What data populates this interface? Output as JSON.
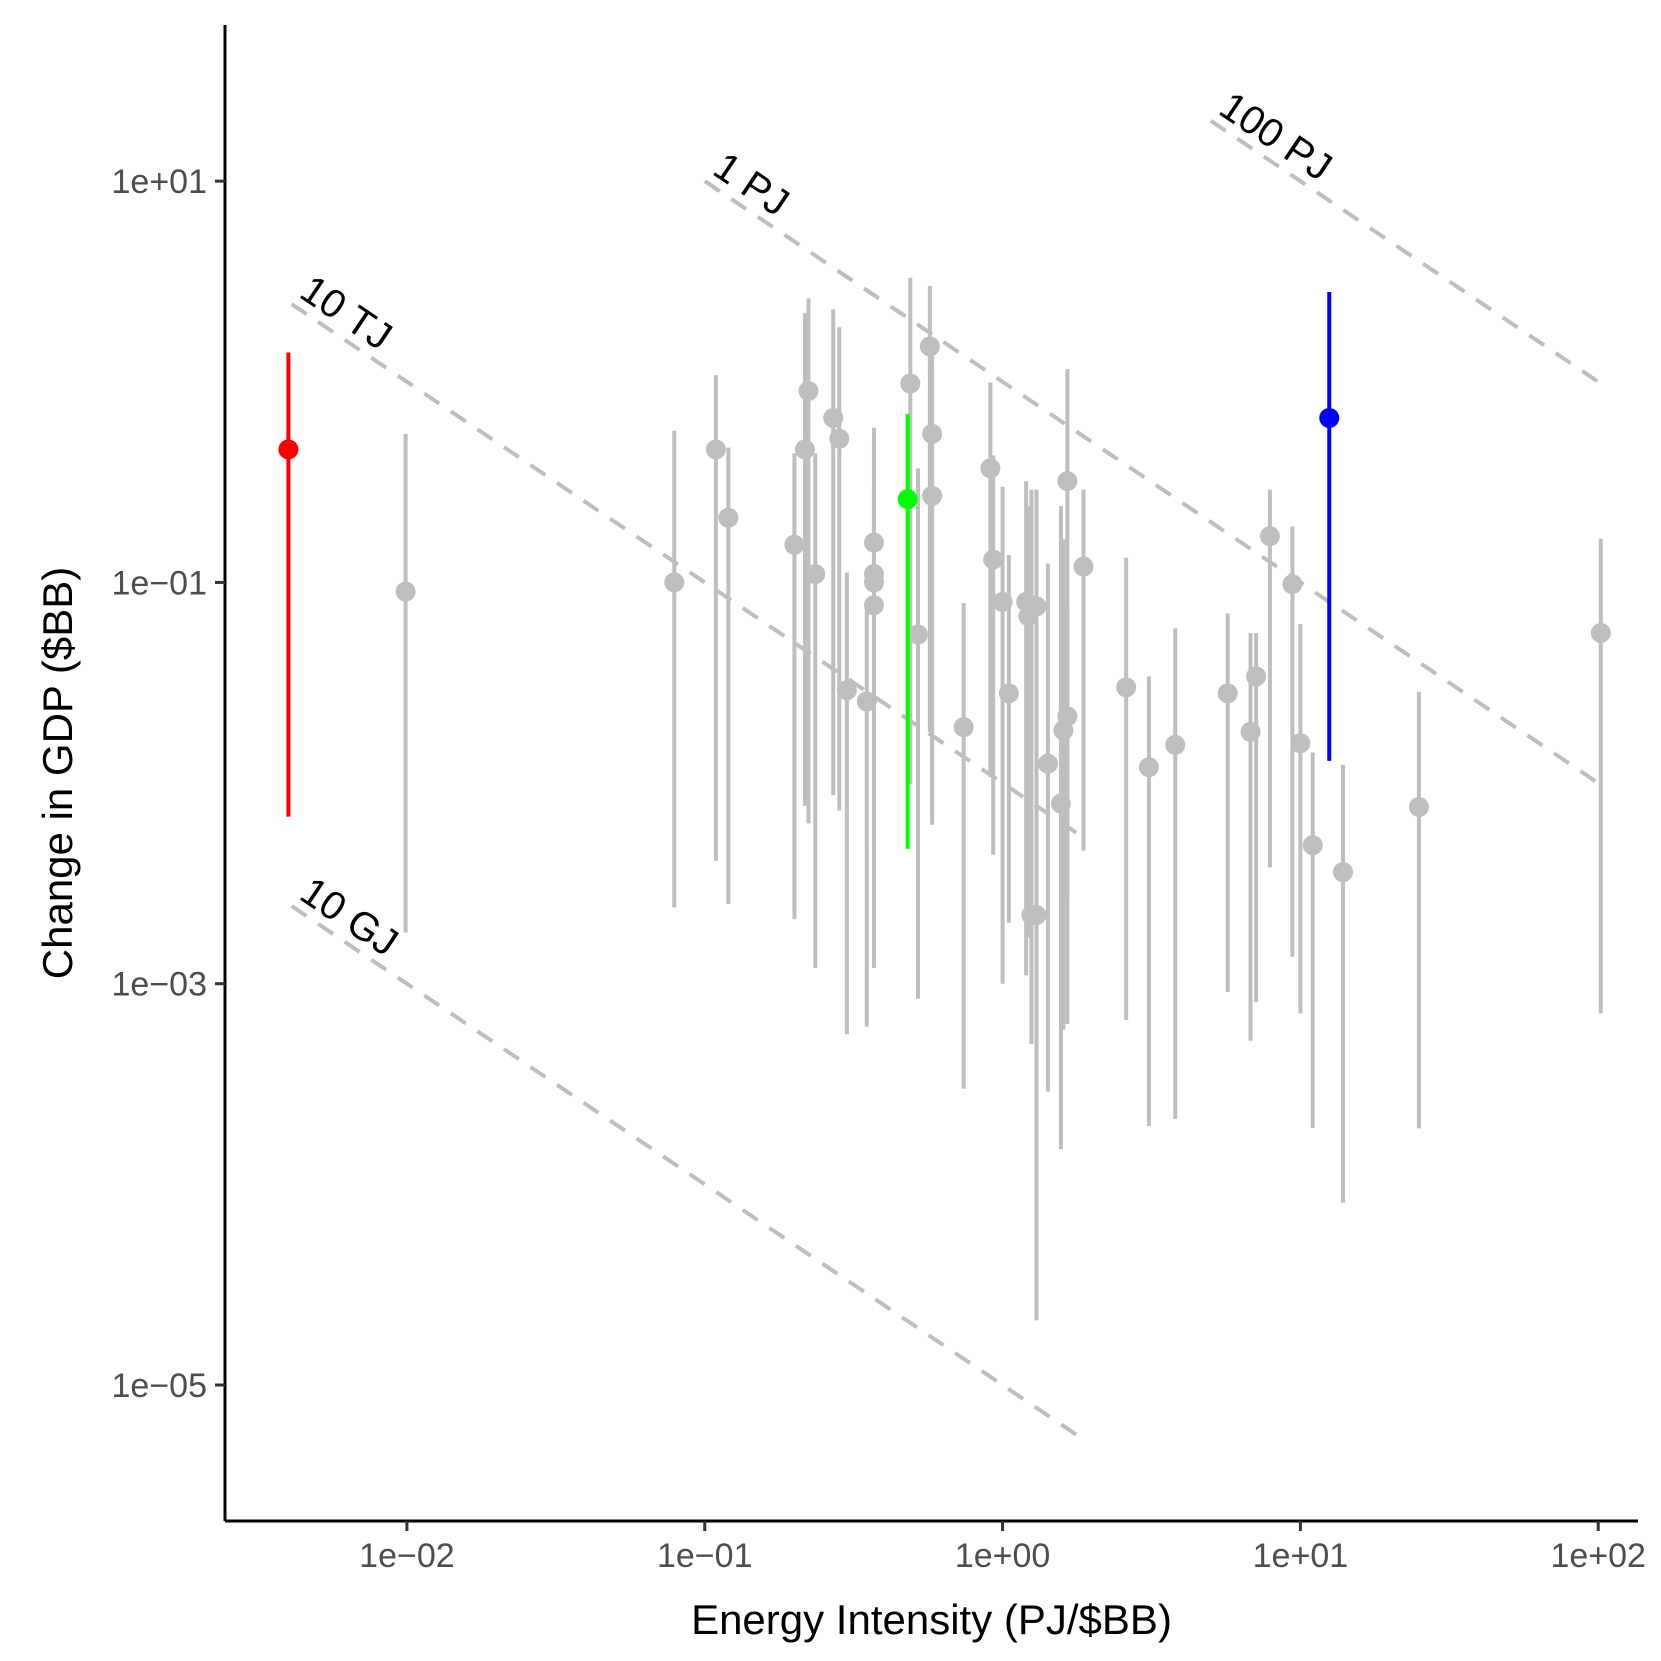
{
  "chart_data": {
    "type": "scatter",
    "title": "",
    "xlabel": "Energy Intensity (PJ/$BB)",
    "ylabel": "Change in GDP ($BB)",
    "x_scale": "log10",
    "y_scale": "log10",
    "xlim": [
      0.00245,
      136
    ],
    "ylim": [
      2.1e-06,
      60
    ],
    "x_ticks": [
      {
        "value": 0.01,
        "label": "1e−02"
      },
      {
        "value": 0.1,
        "label": "1e−01"
      },
      {
        "value": 1,
        "label": "1e+00"
      },
      {
        "value": 10,
        "label": "1e+01"
      },
      {
        "value": 100,
        "label": "1e+02"
      }
    ],
    "y_ticks": [
      {
        "value": 10,
        "label": "1e+01"
      },
      {
        "value": 0.1,
        "label": "1e−01"
      },
      {
        "value": 0.001,
        "label": "1e−03"
      },
      {
        "value": 1e-05,
        "label": "1e−05"
      }
    ],
    "grid": false,
    "legend": "none",
    "colors": {
      "default": "#bebebe",
      "highlight_red": "#ff0000",
      "highlight_green": "#00ff00",
      "highlight_blue": "#0000ff",
      "reference": "#bebebe"
    },
    "reference_lines": [
      {
        "label": "10 GJ",
        "energy_pj": 1e-05,
        "x_from": 0.0041,
        "x_to": 1.9
      },
      {
        "label": "10 TJ",
        "energy_pj": 0.01,
        "x_from": 0.0041,
        "x_to": 1.9
      },
      {
        "label": "1 PJ",
        "energy_pj": 1,
        "x_from": 0.1,
        "x_to": 100
      },
      {
        "label": "100 PJ",
        "energy_pj": 100,
        "x_from": 5.0,
        "x_to": 100
      }
    ],
    "points": [
      {
        "x": 0.004,
        "y": 0.46,
        "lo": 0.0068,
        "hi": 1.4,
        "color": "red"
      },
      {
        "x": 0.0099,
        "y": 0.09,
        "lo": 0.0018,
        "hi": 0.55
      },
      {
        "x": 0.079,
        "y": 0.1,
        "lo": 0.0024,
        "hi": 0.57
      },
      {
        "x": 0.109,
        "y": 0.46,
        "lo": 0.0041,
        "hi": 1.08
      },
      {
        "x": 0.12,
        "y": 0.21,
        "lo": 0.0025,
        "hi": 0.47
      },
      {
        "x": 0.2,
        "y": 0.154,
        "lo": 0.0021,
        "hi": 0.44
      },
      {
        "x": 0.217,
        "y": 0.46,
        "lo": 0.0077,
        "hi": 2.2
      },
      {
        "x": 0.223,
        "y": 0.9,
        "lo": 0.0063,
        "hi": 2.6
      },
      {
        "x": 0.235,
        "y": 0.11,
        "lo": 0.0012,
        "hi": 0.44
      },
      {
        "x": 0.27,
        "y": 0.66,
        "lo": 0.0087,
        "hi": 2.3
      },
      {
        "x": 0.283,
        "y": 0.52,
        "lo": 0.0073,
        "hi": 1.87
      },
      {
        "x": 0.3,
        "y": 0.029,
        "lo": 0.00056,
        "hi": 0.112
      },
      {
        "x": 0.35,
        "y": 0.0255,
        "lo": 0.00061,
        "hi": 0.078
      },
      {
        "x": 0.37,
        "y": 0.158,
        "lo": 0.0012,
        "hi": 0.59
      },
      {
        "x": 0.37,
        "y": 0.11,
        "lo": 0.0049,
        "hi": 0.48
      },
      {
        "x": 0.37,
        "y": 0.1,
        "lo": 0.0036,
        "hi": 0.31
      },
      {
        "x": 0.37,
        "y": 0.077,
        "lo": 0.0013,
        "hi": 0.28
      },
      {
        "x": 0.48,
        "y": 0.26,
        "lo": 0.0047,
        "hi": 0.69,
        "color": "green"
      },
      {
        "x": 0.49,
        "y": 0.98,
        "lo": 0.0099,
        "hi": 3.3
      },
      {
        "x": 0.52,
        "y": 0.055,
        "lo": 0.00084,
        "hi": 0.37
      },
      {
        "x": 0.57,
        "y": 1.5,
        "lo": 0.018,
        "hi": 3.0
      },
      {
        "x": 0.58,
        "y": 0.55,
        "lo": 0.0065,
        "hi": 1.6
      },
      {
        "x": 0.58,
        "y": 0.27,
        "lo": 0.0062,
        "hi": 1.19
      },
      {
        "x": 0.74,
        "y": 0.019,
        "lo": 0.0003,
        "hi": 0.079
      },
      {
        "x": 0.91,
        "y": 0.37,
        "lo": 0.0107,
        "hi": 0.99
      },
      {
        "x": 0.93,
        "y": 0.13,
        "lo": 0.0044,
        "hi": 0.43
      },
      {
        "x": 1.0,
        "y": 0.08,
        "lo": 0.001,
        "hi": 0.3
      },
      {
        "x": 1.05,
        "y": 0.028,
        "lo": 0.00201,
        "hi": 0.137
      },
      {
        "x": 1.2,
        "y": 0.08,
        "lo": 0.0011,
        "hi": 0.32
      },
      {
        "x": 1.22,
        "y": 0.068,
        "lo": 0.0017,
        "hi": 0.24
      },
      {
        "x": 1.25,
        "y": 0.0022,
        "lo": 0.0005,
        "hi": 0.29
      },
      {
        "x": 1.3,
        "y": 0.0022,
        "lo": 2.1e-05,
        "hi": 0.29
      },
      {
        "x": 1.3,
        "y": 0.076,
        "lo": 0.0012,
        "hi": 0.19
      },
      {
        "x": 1.42,
        "y": 0.0125,
        "lo": 0.00029,
        "hi": 0.124
      },
      {
        "x": 1.57,
        "y": 0.0079,
        "lo": 0.00015,
        "hi": 0.24
      },
      {
        "x": 1.6,
        "y": 0.0183,
        "lo": 0.00059,
        "hi": 0.164
      },
      {
        "x": 1.65,
        "y": 0.0215,
        "lo": 0.00063,
        "hi": 0.078
      },
      {
        "x": 1.65,
        "y": 0.32,
        "lo": 0.0027,
        "hi": 1.16
      },
      {
        "x": 1.87,
        "y": 0.12,
        "lo": 0.0046,
        "hi": 0.29
      },
      {
        "x": 2.6,
        "y": 0.03,
        "lo": 0.00066,
        "hi": 0.133
      },
      {
        "x": 3.1,
        "y": 0.012,
        "lo": 0.000195,
        "hi": 0.034
      },
      {
        "x": 3.8,
        "y": 0.0155,
        "lo": 0.000212,
        "hi": 0.059
      },
      {
        "x": 5.7,
        "y": 0.028,
        "lo": 0.00091,
        "hi": 0.07
      },
      {
        "x": 6.8,
        "y": 0.018,
        "lo": 0.00052,
        "hi": 0.056
      },
      {
        "x": 7.1,
        "y": 0.034,
        "lo": 0.00081,
        "hi": 0.056
      },
      {
        "x": 7.9,
        "y": 0.17,
        "lo": 0.0038,
        "hi": 0.29
      },
      {
        "x": 9.4,
        "y": 0.098,
        "lo": 0.00136,
        "hi": 0.19
      },
      {
        "x": 10.0,
        "y": 0.0158,
        "lo": 0.00071,
        "hi": 0.062
      },
      {
        "x": 11.0,
        "y": 0.0049,
        "lo": 0.000191,
        "hi": 0.0142
      },
      {
        "x": 12.5,
        "y": 0.66,
        "lo": 0.0129,
        "hi": 2.8,
        "color": "blue"
      },
      {
        "x": 13.9,
        "y": 0.0036,
        "lo": 8.1e-05,
        "hi": 0.0123
      },
      {
        "x": 25.0,
        "y": 0.0076,
        "lo": 0.00019,
        "hi": 0.0285
      },
      {
        "x": 102.0,
        "y": 0.056,
        "lo": 0.00071,
        "hi": 0.165
      }
    ]
  }
}
